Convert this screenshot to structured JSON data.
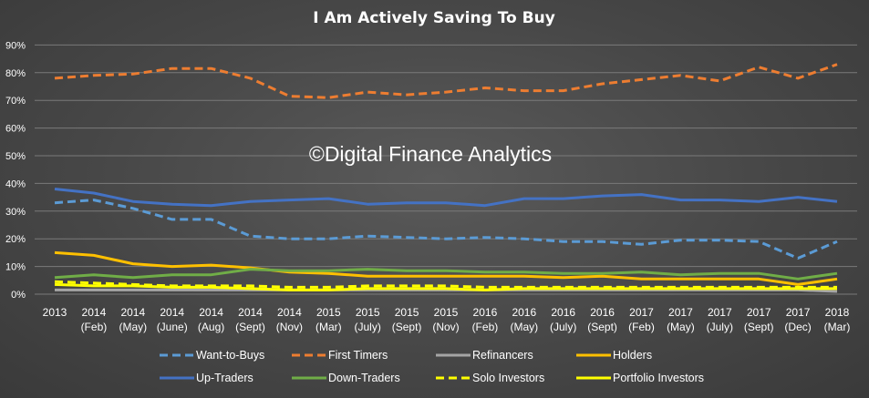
{
  "chart_data": {
    "type": "line",
    "title": "I Am Actively Saving To Buy",
    "xlabel": "",
    "ylabel": "",
    "ylim": [
      0,
      90
    ],
    "y_ticks": [
      "0%",
      "10%",
      "20%",
      "30%",
      "40%",
      "50%",
      "60%",
      "70%",
      "80%",
      "90%"
    ],
    "grid": true,
    "legend_position": "bottom",
    "watermark": "©Digital Finance Analytics",
    "categories": [
      [
        "2013",
        ""
      ],
      [
        "2014",
        "(Feb)"
      ],
      [
        "2014",
        "(May)"
      ],
      [
        "2014",
        "(June)"
      ],
      [
        "2014",
        "(Aug)"
      ],
      [
        "2014",
        "(Sept)"
      ],
      [
        "2014",
        "(Nov)"
      ],
      [
        "2015",
        "(Mar)"
      ],
      [
        "2015",
        "(July)"
      ],
      [
        "2015",
        "(Sept)"
      ],
      [
        "2015",
        "(Nov)"
      ],
      [
        "2016",
        "(Feb)"
      ],
      [
        "2016",
        "(May)"
      ],
      [
        "2016",
        "(July)"
      ],
      [
        "2016",
        "(Sept)"
      ],
      [
        "2017",
        "(Feb)"
      ],
      [
        "2017",
        "(May)"
      ],
      [
        "2017",
        "(July)"
      ],
      [
        "2017",
        "(Sept)"
      ],
      [
        "2017",
        "(Dec)"
      ],
      [
        "2018",
        "(Mar)"
      ]
    ],
    "series": [
      {
        "name": "Want-to-Buys",
        "color": "#5b9bd5",
        "dash": true,
        "values": [
          33,
          34,
          31,
          27,
          27,
          21,
          20,
          20,
          21,
          20.5,
          20,
          20.5,
          20,
          19,
          19,
          18,
          19.5,
          19.5,
          19,
          13,
          19
        ]
      },
      {
        "name": "First Timers",
        "color": "#ed7d31",
        "dash": true,
        "values": [
          78,
          79,
          79.5,
          81.5,
          81.5,
          78,
          71.5,
          71,
          73,
          72,
          73,
          74.5,
          73.5,
          73.5,
          76,
          77.5,
          79,
          77,
          82,
          78,
          83
        ]
      },
      {
        "name": "Refinancers",
        "color": "#a5a5a5",
        "dash": false,
        "values": [
          1.5,
          1.5,
          1.5,
          1.5,
          1.5,
          1.5,
          1.5,
          1.5,
          1.5,
          1.5,
          1.5,
          1.5,
          1.5,
          1.5,
          1.5,
          1.5,
          1.5,
          1.5,
          1.5,
          1.5,
          1
        ]
      },
      {
        "name": "Holders",
        "color": "#ffc000",
        "dash": false,
        "values": [
          15,
          14,
          11,
          10,
          10.5,
          9.5,
          8,
          7.5,
          6.5,
          6.5,
          6.5,
          6.5,
          6.5,
          6,
          6.5,
          5.5,
          5.5,
          5.5,
          5.5,
          3.5,
          5.5
        ]
      },
      {
        "name": "Up-Traders",
        "color": "#4472c4",
        "dash": false,
        "values": [
          38,
          36.5,
          33.5,
          32.5,
          32,
          33.5,
          34,
          34.5,
          32.5,
          33,
          33,
          32,
          34.5,
          34.5,
          35.5,
          36,
          34,
          34,
          33.5,
          35,
          33.5
        ]
      },
      {
        "name": "Down-Traders",
        "color": "#70ad47",
        "dash": false,
        "values": [
          6,
          7,
          6,
          7,
          7,
          9,
          8.5,
          8.5,
          9,
          8.5,
          8.5,
          8,
          8,
          7.5,
          7.5,
          8,
          7,
          7.5,
          7.5,
          5.5,
          7.5
        ]
      },
      {
        "name": "Solo Investors",
        "color": "#ffff00",
        "dash": true,
        "values": [
          4.5,
          4,
          3.5,
          3,
          3,
          3,
          2.5,
          2.5,
          3,
          3,
          3,
          2.5,
          2.5,
          2.5,
          2.5,
          2.5,
          2.5,
          2.5,
          2.5,
          2.5,
          2.5
        ]
      },
      {
        "name": "Portfolio Investors",
        "color": "#ffff00",
        "dash": false,
        "values": [
          3.5,
          3,
          3,
          2.5,
          2.5,
          2,
          1.5,
          1.5,
          2,
          2,
          2,
          1.5,
          2,
          2,
          2,
          2,
          2,
          2,
          2,
          2,
          2
        ]
      }
    ]
  }
}
